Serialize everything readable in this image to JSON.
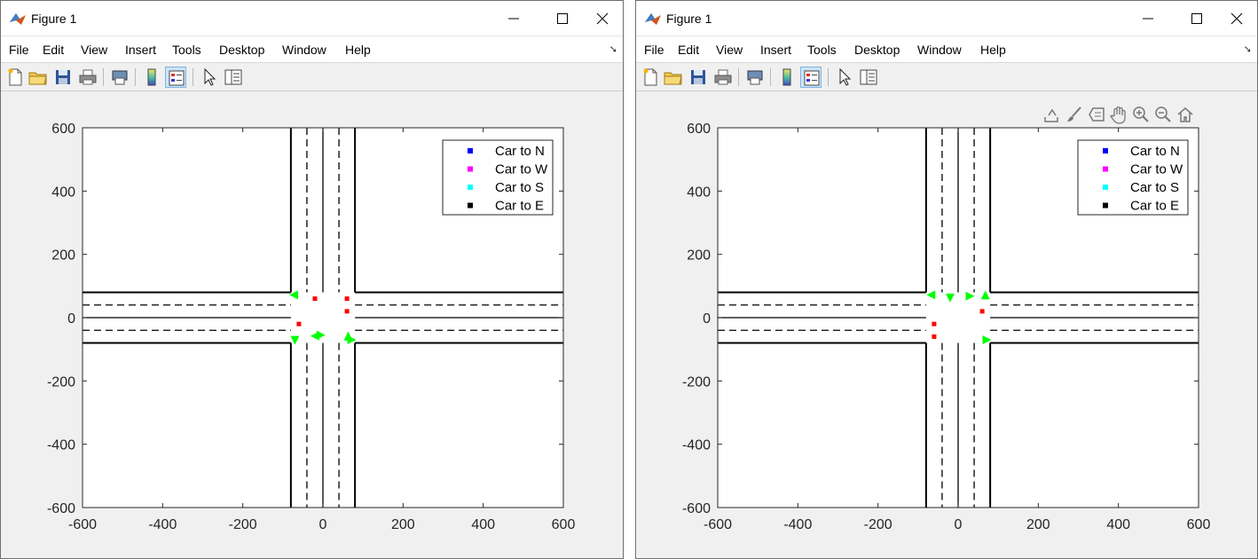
{
  "windows": [
    {
      "title": "Figure 1",
      "menu": [
        "File",
        "Edit",
        "View",
        "Insert",
        "Tools",
        "Desktop",
        "Window",
        "Help"
      ],
      "show_axes_toolbar": false,
      "plot": {
        "xticks": [
          -600,
          -400,
          -200,
          0,
          200,
          400,
          600
        ],
        "yticks": [
          600,
          400,
          200,
          0,
          -200,
          -400,
          -600
        ],
        "legend": [
          "Car to N",
          "Car to W",
          "Car to S",
          "Car to E"
        ],
        "legend_colors": [
          "#0000ff",
          "#ff00ff",
          "#00ffff",
          "#000000"
        ],
        "red_markers": [
          [
            -20,
            60
          ],
          [
            60,
            60
          ],
          [
            60,
            20
          ],
          [
            -60,
            -20
          ]
        ],
        "green_markers": [
          {
            "x": -73,
            "y": 72,
            "dir": "left"
          },
          {
            "x": -70,
            "y": -72,
            "dir": "down"
          },
          {
            "x": -20,
            "y": -58,
            "dir": "left"
          },
          {
            "x": -5,
            "y": -55,
            "dir": "right"
          },
          {
            "x": 63,
            "y": -58,
            "dir": "up"
          },
          {
            "x": 72,
            "y": -70,
            "dir": "right"
          }
        ]
      }
    },
    {
      "title": "Figure 1",
      "menu": [
        "File",
        "Edit",
        "View",
        "Insert",
        "Tools",
        "Desktop",
        "Window",
        "Help"
      ],
      "show_axes_toolbar": true,
      "axes_toolbar": [
        "export-icon",
        "brush-icon",
        "datatip-icon",
        "pan-icon",
        "zoom-in-icon",
        "zoom-out-icon",
        "home-icon"
      ],
      "plot": {
        "xticks": [
          -600,
          -400,
          -200,
          0,
          200,
          400,
          600
        ],
        "yticks": [
          600,
          400,
          200,
          0,
          -200,
          -400,
          -600
        ],
        "legend": [
          "Car to N",
          "Car to W",
          "Car to S",
          "Car to E"
        ],
        "legend_colors": [
          "#0000ff",
          "#ff00ff",
          "#00ffff",
          "#000000"
        ],
        "red_markers": [
          [
            60,
            20
          ],
          [
            -60,
            -20
          ],
          [
            -60,
            -60
          ]
        ],
        "green_markers": [
          {
            "x": -68,
            "y": 72,
            "dir": "left"
          },
          {
            "x": -20,
            "y": 62,
            "dir": "down"
          },
          {
            "x": 30,
            "y": 68,
            "dir": "right"
          },
          {
            "x": 68,
            "y": 72,
            "dir": "up"
          },
          {
            "x": 72,
            "y": -70,
            "dir": "right"
          }
        ]
      }
    }
  ],
  "colors": {
    "road": "#000000",
    "signal": "#00ff00",
    "car": "#ff0000",
    "toolbar_pressed": "#cce4f7"
  }
}
